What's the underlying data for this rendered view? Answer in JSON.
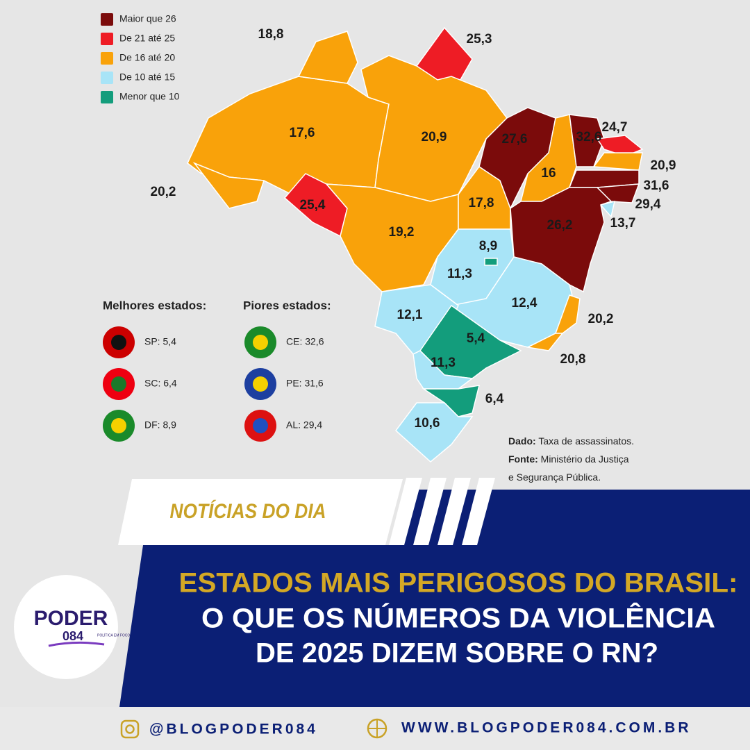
{
  "legend": [
    {
      "label": "Maior que 26",
      "color": "#7b0b0b"
    },
    {
      "label": "De 21 até 25",
      "color": "#ee1c25"
    },
    {
      "label": "De 16 até 20",
      "color": "#f9a20a"
    },
    {
      "label": "De 10 até 15",
      "color": "#a8e4f7"
    },
    {
      "label": "Menor que 10",
      "color": "#139d7c"
    }
  ],
  "map_labels": [
    "18,8",
    "25,3",
    "17,6",
    "20,9",
    "20,2",
    "25,4",
    "19,2",
    "27,6",
    "16",
    "32,6",
    "24,7",
    "20,9",
    "31,6",
    "29,4",
    "13,7",
    "17,8",
    "26,2",
    "8,9",
    "11,3",
    "12,4",
    "12,1",
    "5,4",
    "20,2",
    "11,3",
    "20,8",
    "6,4",
    "10,6"
  ],
  "best_states": {
    "title": "Melhores estados:",
    "items": [
      "SP: 5,4",
      "SC: 6,4",
      "DF: 8,9"
    ]
  },
  "worst_states": {
    "title": "Piores estados:",
    "items": [
      "CE: 32,6",
      "PE: 31,6",
      "AL: 29,4"
    ]
  },
  "source": {
    "data_key": "Dado:",
    "data_text": "Taxa de assassinatos.",
    "source_key": "Fonte:",
    "source_text": "Ministério da Justiça",
    "source_text2": "e Segurança Pública."
  },
  "banner": {
    "tag": "NOTÍCIAS DO DIA",
    "headline": [
      "ESTADOS MAIS PERIGOSOS DO BRASIL:",
      "O QUE OS NÚMEROS DA VIOLÊNCIA",
      "DE 2025 DIZEM SOBRE O RN?"
    ]
  },
  "logo": {
    "name": "PODER",
    "number": "084",
    "tagline": "POLÍTICA EM FOCO"
  },
  "footer": {
    "instagram": "@BLOGPODER084",
    "website": "WWW.BLOGPODER084.COM.BR"
  }
}
